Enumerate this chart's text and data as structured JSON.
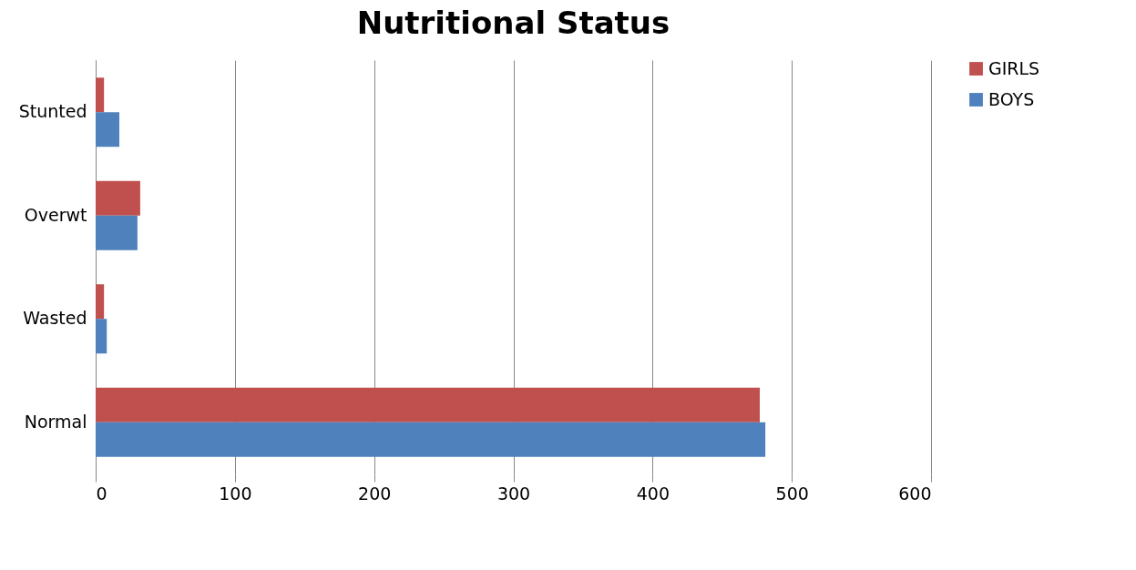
{
  "chart_data": {
    "type": "bar",
    "orientation": "horizontal",
    "title": "Nutritional Status",
    "categories": [
      "Stunted",
      "Overwt",
      "Wasted",
      "Normal"
    ],
    "series": [
      {
        "name": "GIRLS",
        "color": "#c0504d",
        "values": [
          6,
          32,
          6,
          477
        ]
      },
      {
        "name": "BOYS",
        "color": "#4f81bd",
        "values": [
          17,
          30,
          8,
          481
        ]
      }
    ],
    "xlim": [
      0,
      600
    ],
    "xticks": [
      0,
      100,
      200,
      300,
      400,
      500,
      600
    ],
    "grid": "x",
    "legend": "right"
  }
}
